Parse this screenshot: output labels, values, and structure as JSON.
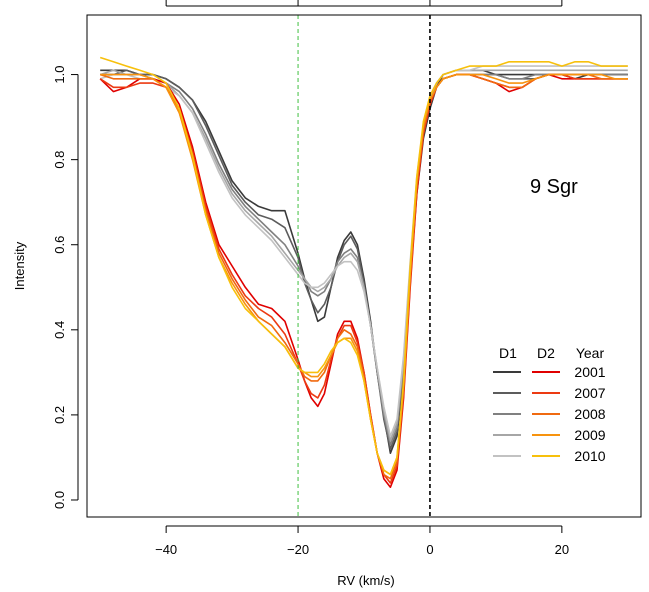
{
  "chart_data": {
    "type": "line",
    "title": "",
    "annotation": "9 Sgr",
    "xlabel": "RV (km/s)",
    "ylabel": "Intensity",
    "xlim": [
      -52,
      32
    ],
    "ylim": [
      -0.04,
      1.14
    ],
    "x_ticks": [
      -40,
      -20,
      0,
      20
    ],
    "y_ticks": [
      0.0,
      0.2,
      0.4,
      0.6,
      0.8,
      1.0
    ],
    "x_tick_labels": [
      "−40",
      "−20",
      "0",
      "20"
    ],
    "y_tick_labels": [
      "0.0",
      "0.2",
      "0.4",
      "0.6",
      "0.8",
      "1.0"
    ],
    "vlines": [
      {
        "x": -20,
        "color": "#40c040",
        "style": "dashed"
      },
      {
        "x": 0,
        "color": "#000000",
        "style": "dashed"
      }
    ],
    "legend": {
      "position": "bottom-right",
      "headers": [
        "D1",
        "D2",
        "Year"
      ],
      "rows": [
        {
          "year": "2001",
          "d1_color": "#3a3a3a",
          "d2_color": "#e00000"
        },
        {
          "year": "2007",
          "d1_color": "#5c5c5c",
          "d2_color": "#ec3a12"
        },
        {
          "year": "2008",
          "d1_color": "#808080",
          "d2_color": "#f06a10"
        },
        {
          "year": "2009",
          "d1_color": "#a6a6a6",
          "d2_color": "#f7930e"
        },
        {
          "year": "2010",
          "d1_color": "#c2c2c2",
          "d2_color": "#f7c00c"
        }
      ]
    },
    "x": [
      -50,
      -48,
      -46,
      -44,
      -42,
      -40,
      -38,
      -36,
      -34,
      -32,
      -30,
      -28,
      -26,
      -24,
      -22,
      -20,
      -19,
      -18,
      -17,
      -16,
      -15,
      -14,
      -13,
      -12,
      -11,
      -10,
      -9,
      -8,
      -7,
      -6,
      -5,
      -4,
      -3,
      -2,
      -1,
      0,
      1,
      2,
      4,
      6,
      8,
      10,
      12,
      14,
      16,
      18,
      20,
      22,
      24,
      26,
      28,
      30
    ],
    "series": [
      {
        "group": "D1",
        "year": "2001",
        "color": "#3a3a3a",
        "values": [
          1.01,
          1.01,
          1.01,
          1.0,
          1.0,
          0.99,
          0.97,
          0.94,
          0.89,
          0.82,
          0.75,
          0.71,
          0.69,
          0.68,
          0.68,
          0.58,
          0.52,
          0.47,
          0.42,
          0.43,
          0.5,
          0.57,
          0.61,
          0.63,
          0.6,
          0.52,
          0.42,
          0.3,
          0.2,
          0.11,
          0.15,
          0.3,
          0.52,
          0.72,
          0.85,
          0.92,
          0.97,
          1.0,
          1.01,
          1.01,
          1.01,
          1.0,
          1.0,
          1.0,
          1.0,
          1.0,
          1.0,
          0.99,
          1.0,
          1.0,
          1.0,
          1.0
        ]
      },
      {
        "group": "D1",
        "year": "2007",
        "color": "#5c5c5c",
        "values": [
          1.0,
          1.0,
          1.01,
          1.0,
          1.0,
          0.99,
          0.97,
          0.94,
          0.88,
          0.81,
          0.74,
          0.7,
          0.67,
          0.66,
          0.64,
          0.57,
          0.51,
          0.47,
          0.44,
          0.46,
          0.5,
          0.56,
          0.6,
          0.62,
          0.59,
          0.51,
          0.41,
          0.3,
          0.19,
          0.12,
          0.16,
          0.31,
          0.53,
          0.73,
          0.86,
          0.93,
          0.97,
          0.99,
          1.0,
          1.0,
          1.0,
          1.0,
          0.99,
          0.99,
          0.99,
          1.0,
          1.0,
          1.0,
          1.0,
          1.0,
          1.0,
          1.0
        ]
      },
      {
        "group": "D1",
        "year": "2008",
        "color": "#808080",
        "values": [
          1.0,
          1.0,
          1.0,
          1.0,
          0.99,
          0.98,
          0.96,
          0.92,
          0.86,
          0.79,
          0.73,
          0.69,
          0.66,
          0.63,
          0.6,
          0.55,
          0.52,
          0.49,
          0.48,
          0.49,
          0.52,
          0.56,
          0.58,
          0.59,
          0.57,
          0.5,
          0.41,
          0.3,
          0.2,
          0.13,
          0.17,
          0.32,
          0.54,
          0.74,
          0.86,
          0.93,
          0.97,
          0.99,
          1.0,
          1.0,
          1.0,
          1.0,
          0.99,
          0.99,
          1.0,
          1.0,
          1.0,
          1.0,
          1.0,
          1.0,
          1.0,
          1.0
        ]
      },
      {
        "group": "D1",
        "year": "2009",
        "color": "#a6a6a6",
        "values": [
          1.0,
          1.01,
          1.0,
          1.0,
          0.99,
          0.98,
          0.95,
          0.91,
          0.85,
          0.78,
          0.72,
          0.68,
          0.65,
          0.62,
          0.58,
          0.54,
          0.52,
          0.5,
          0.49,
          0.5,
          0.52,
          0.55,
          0.57,
          0.58,
          0.56,
          0.5,
          0.41,
          0.31,
          0.21,
          0.14,
          0.18,
          0.33,
          0.55,
          0.75,
          0.87,
          0.94,
          0.98,
          1.0,
          1.01,
          1.01,
          1.01,
          1.01,
          1.01,
          1.01,
          1.01,
          1.01,
          1.01,
          1.01,
          1.01,
          1.01,
          1.01,
          1.01
        ]
      },
      {
        "group": "D1",
        "year": "2010",
        "color": "#c2c2c2",
        "values": [
          0.99,
          1.0,
          1.0,
          0.99,
          0.99,
          0.97,
          0.95,
          0.91,
          0.84,
          0.77,
          0.71,
          0.67,
          0.64,
          0.61,
          0.57,
          0.53,
          0.51,
          0.5,
          0.5,
          0.51,
          0.53,
          0.55,
          0.56,
          0.56,
          0.54,
          0.49,
          0.41,
          0.31,
          0.22,
          0.15,
          0.19,
          0.34,
          0.56,
          0.76,
          0.88,
          0.95,
          0.98,
          1.0,
          1.01,
          1.01,
          1.02,
          1.02,
          1.02,
          1.02,
          1.02,
          1.02,
          1.02,
          1.02,
          1.02,
          1.02,
          1.02,
          1.02
        ]
      },
      {
        "group": "D2",
        "year": "2001",
        "color": "#e00000",
        "values": [
          0.99,
          0.96,
          0.97,
          0.99,
          0.99,
          0.98,
          0.93,
          0.83,
          0.7,
          0.6,
          0.55,
          0.5,
          0.46,
          0.45,
          0.42,
          0.33,
          0.28,
          0.24,
          0.22,
          0.25,
          0.32,
          0.39,
          0.42,
          0.42,
          0.38,
          0.3,
          0.2,
          0.11,
          0.05,
          0.03,
          0.07,
          0.24,
          0.5,
          0.72,
          0.86,
          0.93,
          0.97,
          0.99,
          1.0,
          1.0,
          0.99,
          0.98,
          0.96,
          0.97,
          0.99,
          1.0,
          0.99,
          0.99,
          0.99,
          0.99,
          0.99,
          0.99
        ]
      },
      {
        "group": "D2",
        "year": "2007",
        "color": "#ec3a12",
        "values": [
          0.99,
          0.97,
          0.97,
          0.98,
          0.98,
          0.97,
          0.92,
          0.82,
          0.69,
          0.59,
          0.53,
          0.48,
          0.45,
          0.43,
          0.39,
          0.32,
          0.28,
          0.25,
          0.24,
          0.27,
          0.33,
          0.38,
          0.41,
          0.41,
          0.37,
          0.3,
          0.2,
          0.11,
          0.06,
          0.04,
          0.08,
          0.25,
          0.51,
          0.73,
          0.86,
          0.93,
          0.97,
          0.99,
          1.0,
          1.0,
          0.99,
          0.98,
          0.97,
          0.97,
          0.99,
          1.0,
          1.0,
          0.99,
          0.99,
          0.99,
          0.99,
          0.99
        ]
      },
      {
        "group": "D2",
        "year": "2008",
        "color": "#f06a10",
        "values": [
          1.0,
          0.99,
          0.99,
          0.99,
          0.99,
          0.97,
          0.91,
          0.81,
          0.68,
          0.58,
          0.52,
          0.47,
          0.43,
          0.41,
          0.37,
          0.32,
          0.29,
          0.28,
          0.28,
          0.3,
          0.34,
          0.38,
          0.4,
          0.39,
          0.36,
          0.29,
          0.19,
          0.11,
          0.06,
          0.05,
          0.09,
          0.26,
          0.52,
          0.74,
          0.87,
          0.94,
          0.97,
          0.99,
          1.0,
          1.0,
          0.99,
          0.98,
          0.97,
          0.97,
          0.99,
          1.0,
          1.0,
          1.0,
          1.0,
          0.99,
          0.99,
          0.99
        ]
      },
      {
        "group": "D2",
        "year": "2009",
        "color": "#f7930e",
        "values": [
          1.0,
          1.0,
          1.0,
          1.0,
          0.99,
          0.97,
          0.91,
          0.8,
          0.67,
          0.57,
          0.51,
          0.46,
          0.42,
          0.39,
          0.36,
          0.31,
          0.3,
          0.29,
          0.29,
          0.31,
          0.34,
          0.37,
          0.38,
          0.38,
          0.35,
          0.28,
          0.19,
          0.11,
          0.07,
          0.06,
          0.1,
          0.27,
          0.53,
          0.75,
          0.88,
          0.94,
          0.97,
          0.99,
          1.0,
          1.0,
          1.0,
          0.99,
          0.98,
          0.98,
          0.99,
          1.0,
          1.0,
          1.0,
          1.0,
          1.0,
          0.99,
          0.99
        ]
      },
      {
        "group": "D2",
        "year": "2010",
        "color": "#f7c00c",
        "values": [
          1.04,
          1.03,
          1.02,
          1.01,
          1.0,
          0.98,
          0.92,
          0.81,
          0.67,
          0.57,
          0.5,
          0.45,
          0.42,
          0.39,
          0.36,
          0.31,
          0.3,
          0.3,
          0.3,
          0.32,
          0.35,
          0.37,
          0.38,
          0.37,
          0.34,
          0.28,
          0.19,
          0.11,
          0.07,
          0.06,
          0.1,
          0.28,
          0.55,
          0.76,
          0.89,
          0.95,
          0.98,
          1.0,
          1.01,
          1.02,
          1.02,
          1.02,
          1.03,
          1.03,
          1.03,
          1.03,
          1.02,
          1.03,
          1.03,
          1.02,
          1.02,
          1.02
        ]
      }
    ]
  }
}
